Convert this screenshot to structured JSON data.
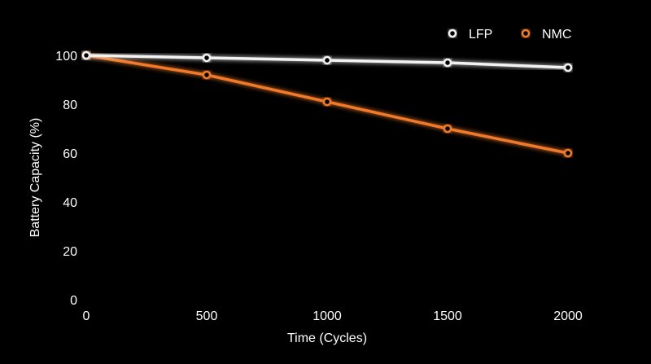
{
  "chart_data": {
    "type": "line",
    "title": "",
    "xlabel": "Time (Cycles)",
    "ylabel": "Battery Capacity (%)",
    "x": [
      0,
      500,
      1000,
      1500,
      2000
    ],
    "x_ticks": [
      "0",
      "500",
      "1000",
      "1500",
      "2000"
    ],
    "y_ticks": [
      "0",
      "20",
      "40",
      "60",
      "80",
      "100"
    ],
    "xlim": [
      0,
      2000
    ],
    "ylim": [
      0,
      100
    ],
    "grid": false,
    "legend_position": "top-right",
    "background": "#000000",
    "axis_color": "#ffffff",
    "series": [
      {
        "name": "LFP",
        "color": "#f2f2f2",
        "values": [
          100,
          99,
          98,
          97,
          95
        ]
      },
      {
        "name": "NMC",
        "color": "#f07a2a",
        "values": [
          100,
          92,
          81,
          70,
          60
        ]
      }
    ]
  }
}
